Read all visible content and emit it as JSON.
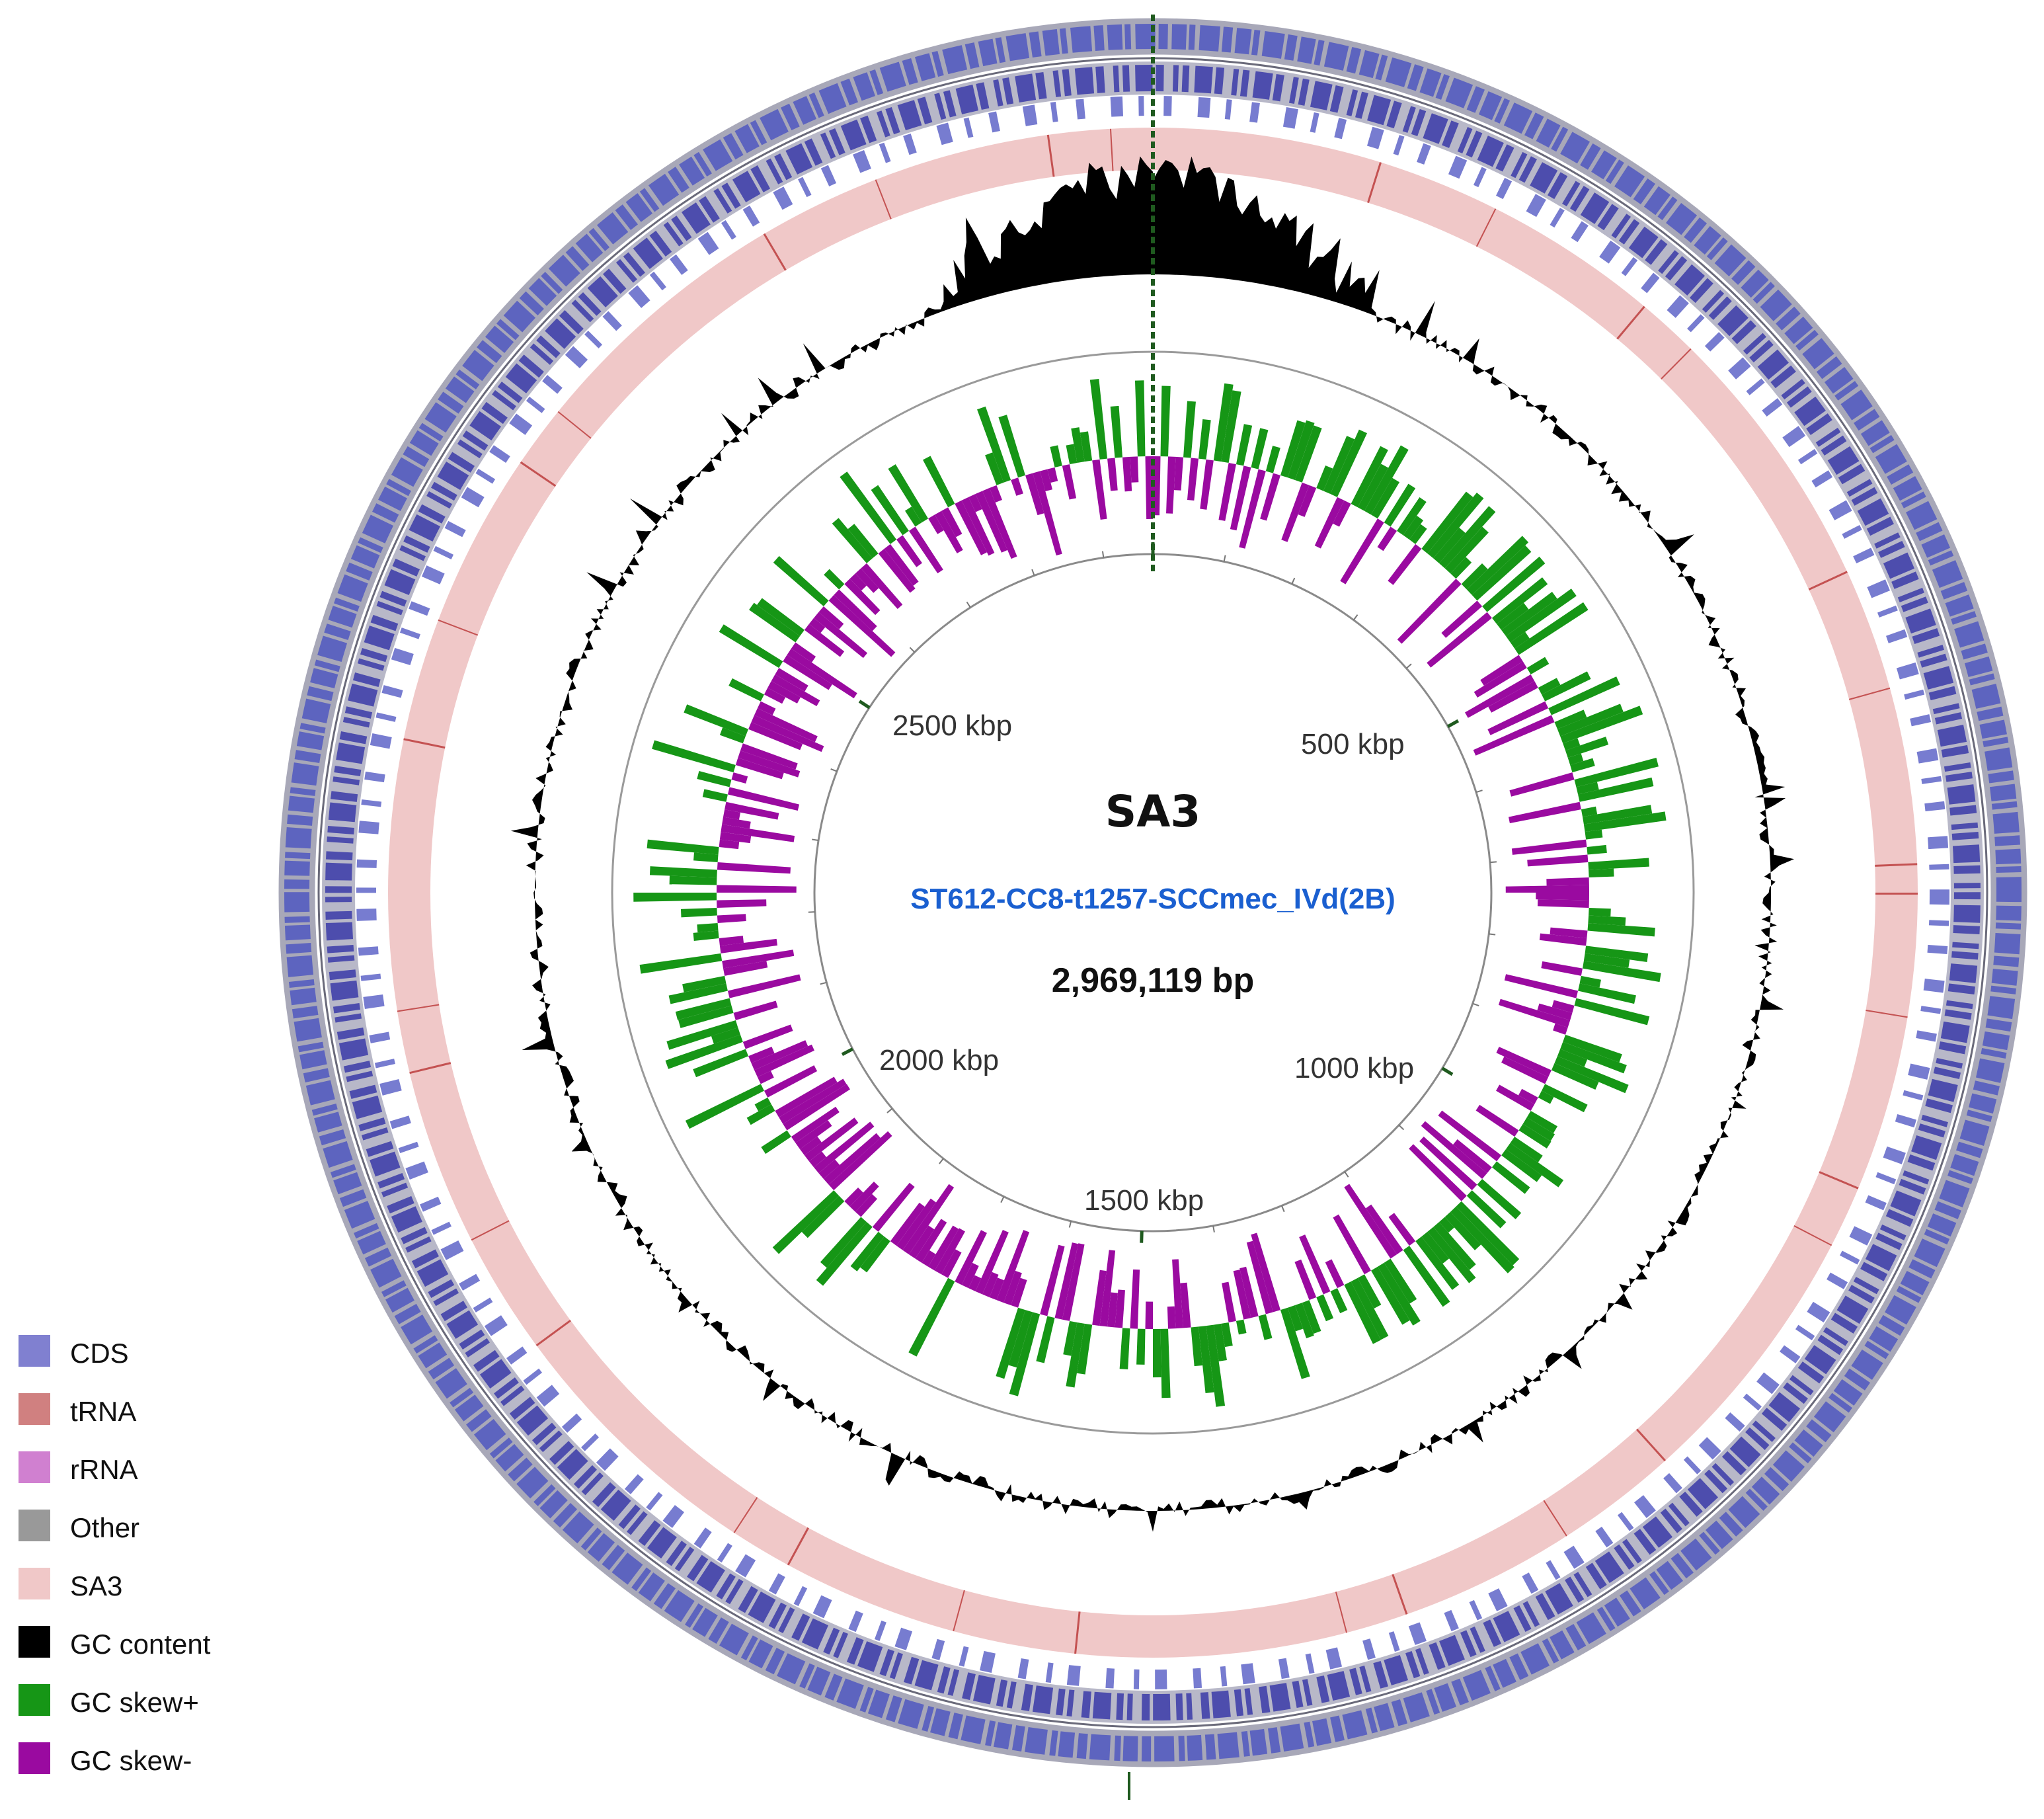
{
  "genome": {
    "name": "SA3",
    "typing": "ST612-CC8-t1257-SCCmec_IVd(2B)",
    "length_label": "2,969,119 bp",
    "length_bp": 2969119
  },
  "ticks": [
    {
      "label": "500 kbp",
      "position_kbp": 500
    },
    {
      "label": "1000 kbp",
      "position_kbp": 1000
    },
    {
      "label": "1500 kbp",
      "position_kbp": 1500
    },
    {
      "label": "2000 kbp",
      "position_kbp": 2000
    },
    {
      "label": "2500 kbp",
      "position_kbp": 2500
    }
  ],
  "legend": [
    {
      "label": "CDS",
      "color": "#8080d0"
    },
    {
      "label": "tRNA",
      "color": "#d08080"
    },
    {
      "label": "rRNA",
      "color": "#d080d0"
    },
    {
      "label": "Other",
      "color": "#999999"
    },
    {
      "label": "SA3",
      "color": "#f0c8c8"
    },
    {
      "label": "GC content",
      "color": "#000000"
    },
    {
      "label": "GC skew+",
      "color": "#169616"
    },
    {
      "label": "GC skew-",
      "color": "#9a0aa0"
    }
  ],
  "colors": {
    "cds_dark": "#1a1a9a",
    "cds_light": "#8080d0",
    "other_ring": "#9a9a9a",
    "sa3_ring": "#f0c8c8",
    "trna_line": "#b02020",
    "gc_content": "#000000",
    "gc_skew_pos": "#169616",
    "gc_skew_neg": "#9a0aa0",
    "typing_text": "#1a5fd0",
    "origin_marker": "#1f5a1f"
  }
}
